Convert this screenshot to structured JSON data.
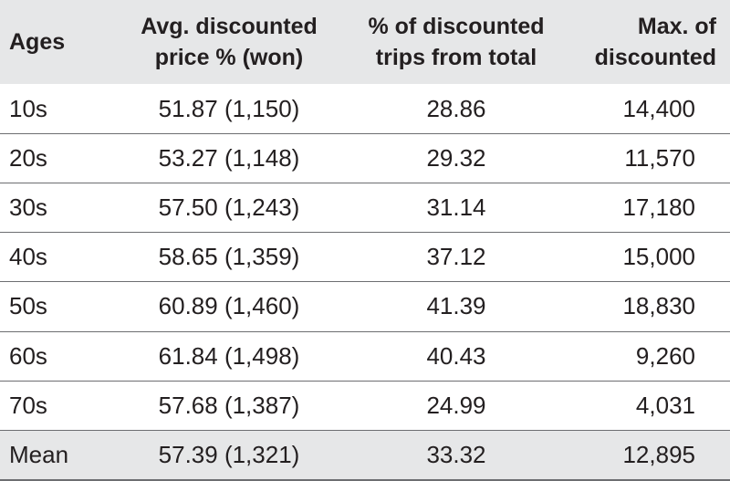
{
  "table": {
    "header": [
      "Ages",
      "Avg. discounted\nprice % (won)",
      "% of discounted\ntrips from total",
      "Max. of\ndiscounted"
    ],
    "rows": [
      [
        "10s",
        "51.87 (1,150)",
        "28.86",
        "14,400"
      ],
      [
        "20s",
        "53.27 (1,148)",
        "29.32",
        "11,570"
      ],
      [
        "30s",
        "57.50 (1,243)",
        "31.14",
        "17,180"
      ],
      [
        "40s",
        "58.65 (1,359)",
        "37.12",
        "15,000"
      ],
      [
        "50s",
        "60.89 (1,460)",
        "41.39",
        "18,830"
      ],
      [
        "60s",
        "61.84 (1,498)",
        "40.43",
        "9,260"
      ],
      [
        "70s",
        "57.68 (1,387)",
        "24.99",
        "4,031"
      ],
      [
        "Mean",
        "57.39 (1,321)",
        "33.32",
        "12,895"
      ]
    ]
  }
}
